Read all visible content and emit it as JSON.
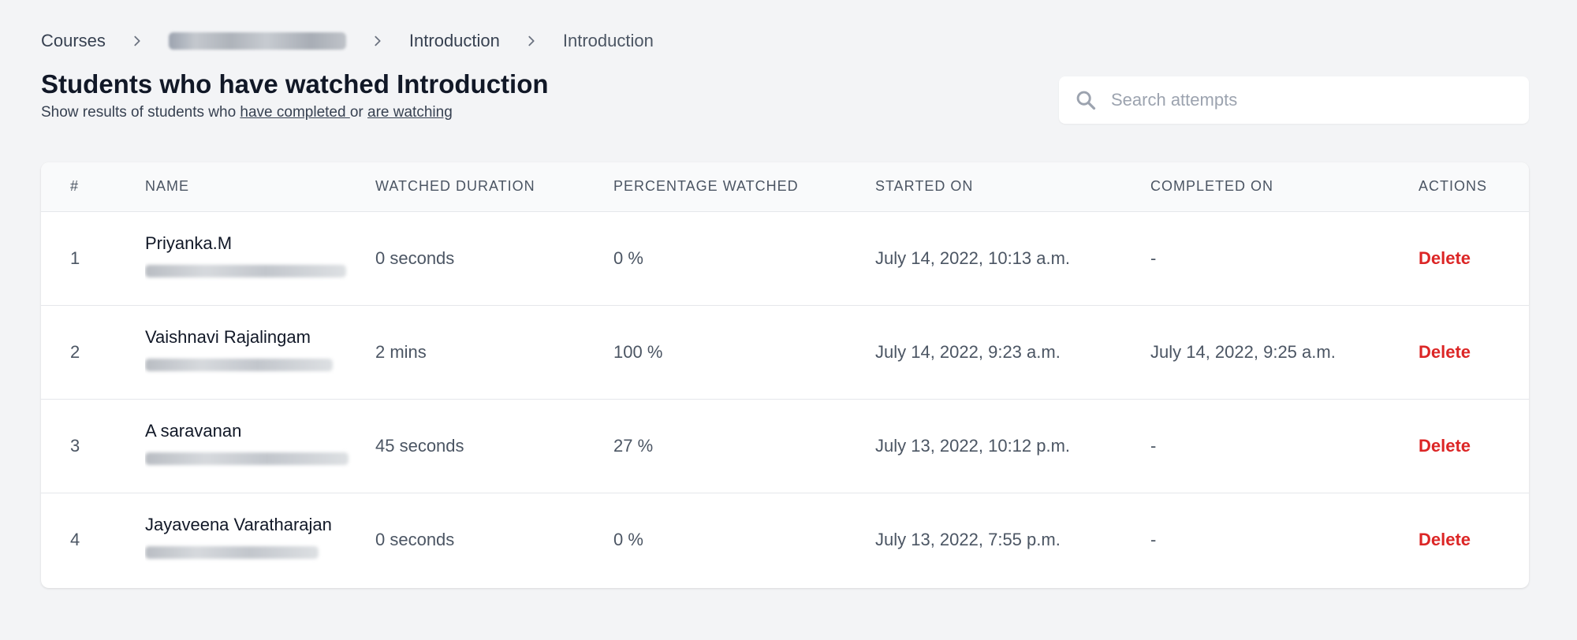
{
  "breadcrumb": {
    "courses": "Courses",
    "lesson_parent": "Introduction",
    "lesson": "Introduction"
  },
  "page": {
    "title": "Students who have watched Introduction",
    "subtitle_prefix": "Show results of students who ",
    "link_completed": "have completed ",
    "subtitle_mid": "or ",
    "link_watching": "are watching"
  },
  "search": {
    "placeholder": "Search attempts",
    "value": ""
  },
  "table": {
    "headers": {
      "index": "#",
      "name": "NAME",
      "duration": "WATCHED DURATION",
      "percentage": "PERCENTAGE WATCHED",
      "started": "STARTED ON",
      "completed": "COMPLETED ON",
      "actions": "ACTIONS"
    },
    "rows": [
      {
        "index": "1",
        "name": "Priyanka.M",
        "duration": "0 seconds",
        "percentage": "0 %",
        "started": "July 14, 2022, 10:13 a.m.",
        "completed": "-",
        "action": "Delete"
      },
      {
        "index": "2",
        "name": "Vaishnavi Rajalingam",
        "duration": "2 mins",
        "percentage": "100 %",
        "started": "July 14, 2022, 9:23 a.m.",
        "completed": "July 14, 2022, 9:25 a.m.",
        "action": "Delete"
      },
      {
        "index": "3",
        "name": "A saravanan",
        "duration": "45 seconds",
        "percentage": "27 %",
        "started": "July 13, 2022, 10:12 p.m.",
        "completed": "-",
        "action": "Delete"
      },
      {
        "index": "4",
        "name": "Jayaveena Varatharajan",
        "duration": "0 seconds",
        "percentage": "0 %",
        "started": "July 13, 2022, 7:55 p.m.",
        "completed": "-",
        "action": "Delete"
      }
    ]
  },
  "colors": {
    "background": "#f3f4f6",
    "delete": "#dc2626",
    "heading": "#111827",
    "muted": "#4b5563"
  },
  "icons": {
    "chevron": "chevron-right-icon",
    "search": "search-icon"
  }
}
